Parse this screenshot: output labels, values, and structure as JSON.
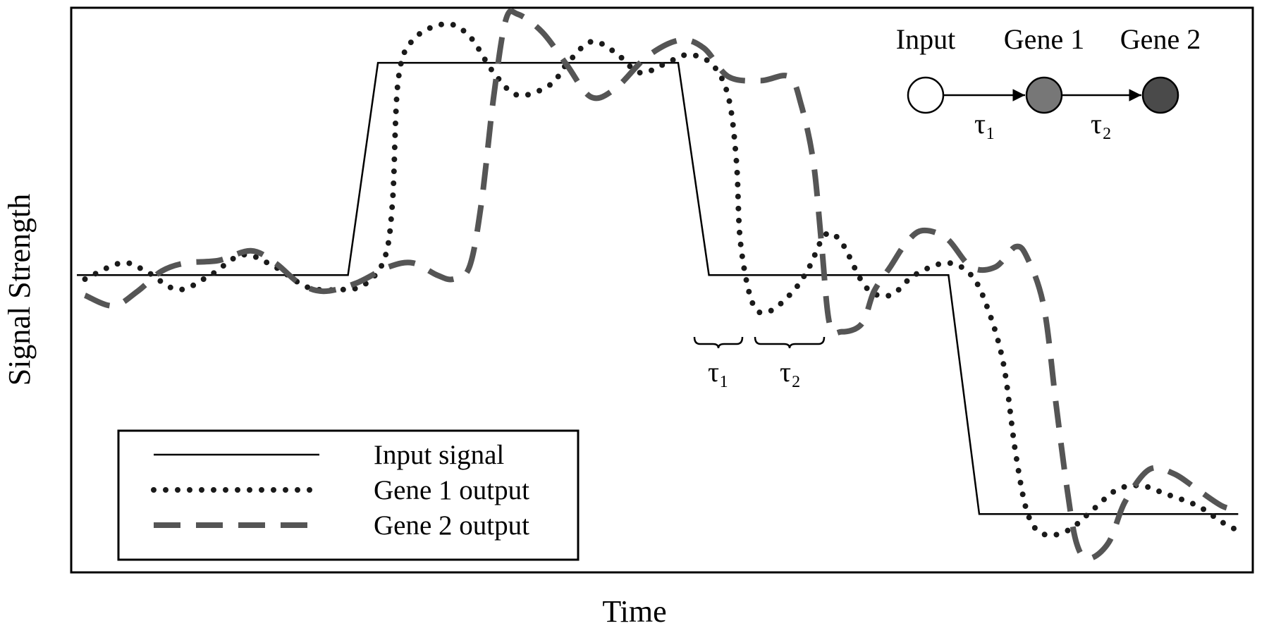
{
  "chart_data": {
    "type": "line",
    "x_label": "Time",
    "y_label": "Signal Strength",
    "xlim": [
      0,
      1460
    ],
    "ylim": [
      0,
      697
    ],
    "series": [
      {
        "name": "Input signal",
        "color": "#000000",
        "style": "solid",
        "x": [
          7,
          342,
          379,
          750,
          788,
          1084,
          1122,
          1442
        ],
        "values": [
          367,
          367,
          629,
          629,
          367,
          367,
          72,
          72
        ]
      },
      {
        "name": "Gene 1 output",
        "color": "#1a1a1a",
        "style": "dotted",
        "x": [
          17,
          62,
          92,
          132,
          172,
          212,
          252,
          292,
          332,
          362,
          387,
          397,
          404,
          422,
          462,
          492,
          522,
          552,
          592,
          612,
          642,
          672,
          702,
          732,
          762,
          792,
          812,
          822,
          827,
          842,
          862,
          892,
          912,
          932,
          952,
          982,
          1012,
          1042,
          1082,
          1112,
          1132,
          1152,
          1167,
          1182,
          1202,
          1232,
          1262,
          1292,
          1322,
          1352,
          1392,
          1422,
          1447
        ],
        "values": [
          362,
          382,
          372,
          349,
          367,
          392,
          377,
          352,
          349,
          355,
          387,
          457,
          607,
          657,
          677,
          662,
          617,
          589,
          602,
          627,
          655,
          642,
          617,
          627,
          639,
          627,
          587,
          507,
          407,
          332,
          322,
          347,
          377,
          417,
          407,
          352,
          342,
          367,
          382,
          367,
          327,
          257,
          147,
          72,
          47,
          52,
          77,
          102,
          107,
          97,
          82,
          62,
          49
        ]
      },
      {
        "name": "Gene 2 output",
        "color": "#555555",
        "style": "dashed",
        "x": [
          17,
          52,
          82,
          112,
          142,
          182,
          222,
          252,
          282,
          312,
          352,
          392,
          422,
          452,
          472,
          492,
          507,
          522,
          537,
          552,
          582,
          612,
          642,
          672,
          712,
          752,
          782,
          812,
          852,
          887,
          902,
          917,
          927,
          937,
          952,
          977,
          992,
          1012,
          1032,
          1052,
          1082,
          1112,
          1142,
          1167,
          1182,
          1202,
          1217,
          1230,
          1242,
          1257,
          1282,
          1302,
          1332,
          1362,
          1392,
          1422,
          1442
        ],
        "values": [
          342,
          329,
          347,
          372,
          382,
          385,
          397,
          382,
          357,
          347,
          357,
          377,
          382,
          367,
          362,
          377,
          457,
          587,
          682,
          689,
          667,
          627,
          587,
          597,
          637,
          657,
          647,
          612,
          607,
          612,
          577,
          507,
          407,
          307,
          297,
          307,
          347,
          377,
          407,
          422,
          412,
          377,
          377,
          402,
          387,
          327,
          207,
          107,
          37,
          17,
          37,
          87,
          127,
          122,
          102,
          82,
          77
        ]
      }
    ],
    "delay_labels": [
      "τ₁",
      "τ₂"
    ],
    "inset": {
      "nodes": [
        "Input",
        "Gene 1",
        "Gene 2"
      ],
      "edges": [
        "τ₁",
        "τ₂"
      ]
    }
  }
}
